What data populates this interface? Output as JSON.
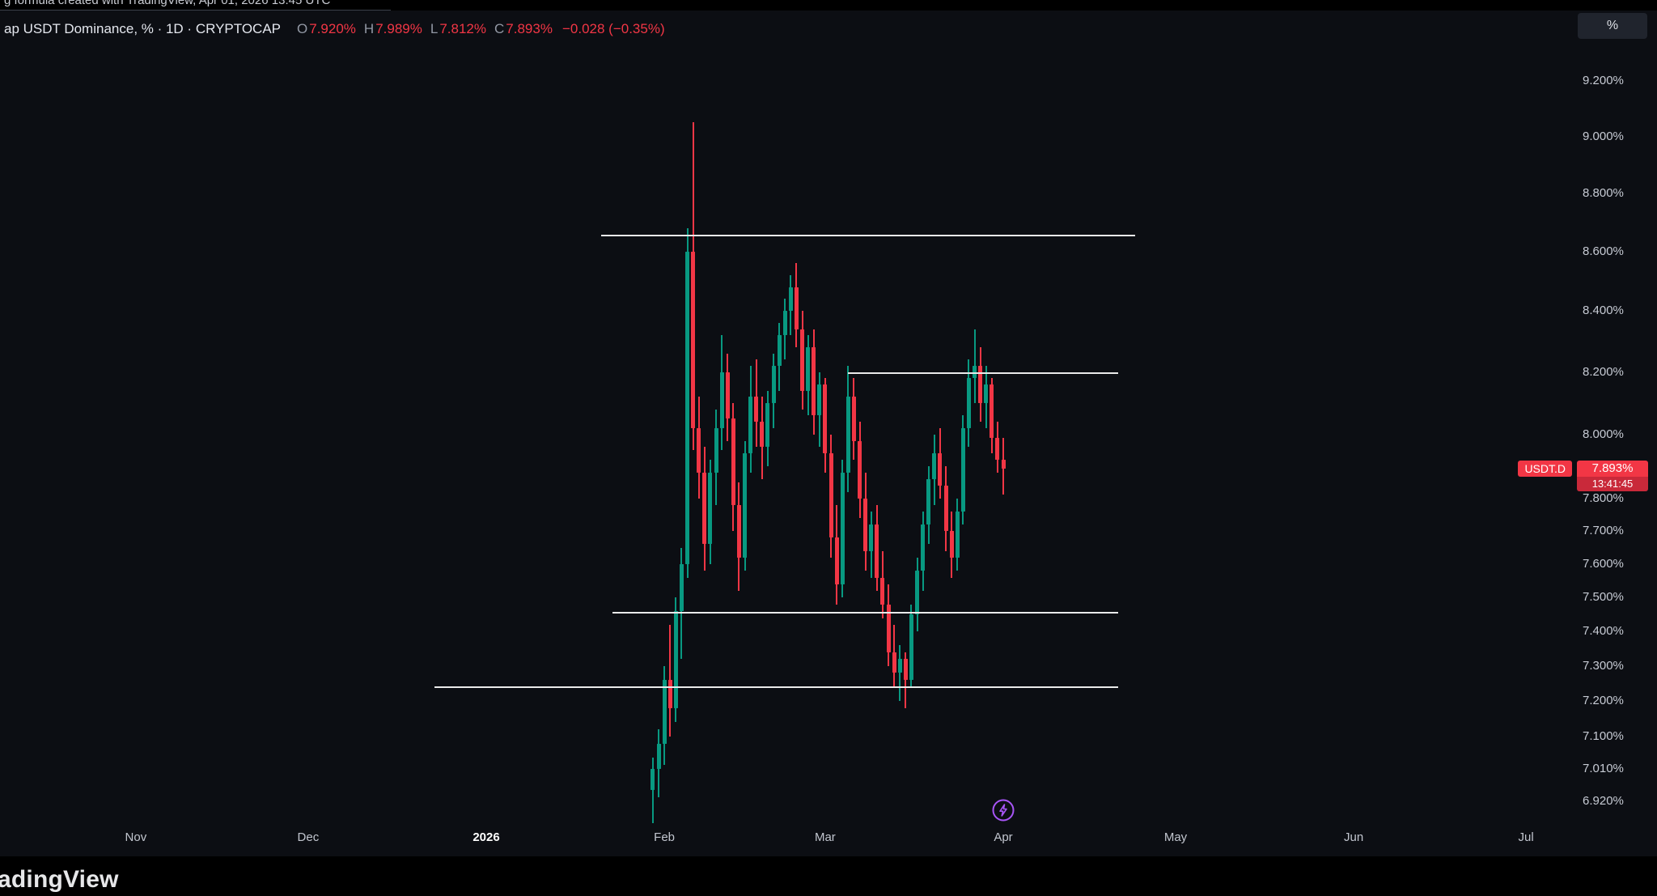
{
  "watermark": {
    "text": "g formula created with TradingView, Apr 01, 2026 13:45 UTC"
  },
  "toolbar": {
    "percent_button": "%"
  },
  "legend": {
    "title": "ap USDT Dominance, % · 1D · CRYPTOCAP",
    "open_label": "O",
    "open_value": "7.920%",
    "high_label": "H",
    "high_value": "7.989%",
    "low_label": "L",
    "low_value": "7.812%",
    "close_label": "C",
    "close_value": "7.893%",
    "change_value": "−0.028 (−0.35%)"
  },
  "price_label": {
    "symbol": "USDT.D",
    "price": "7.893%",
    "value": 7.893,
    "countdown": "13:41:45"
  },
  "logo": {
    "text": "adingView"
  },
  "colors": {
    "background": "#0c0e13",
    "up": "#089981",
    "down": "#f23645",
    "level": "#eaeaea",
    "marker_purple": "#a855f7",
    "axis_text": "#c7cbd4",
    "badge_red": "#f23645"
  },
  "chart_data": {
    "type": "candlestick",
    "symbol": "USDT.D",
    "title": "USDT Dominance, %",
    "interval": "1D",
    "ylim": [
      6.85,
      9.27
    ],
    "y_scale": "log",
    "grid": "off",
    "price_axis": {
      "ticks": [
        {
          "label": "9.200%",
          "value": 9.2
        },
        {
          "label": "9.000%",
          "value": 9.0
        },
        {
          "label": "8.800%",
          "value": 8.8
        },
        {
          "label": "8.600%",
          "value": 8.6
        },
        {
          "label": "8.400%",
          "value": 8.4
        },
        {
          "label": "8.200%",
          "value": 8.2
        },
        {
          "label": "8.000%",
          "value": 8.0
        },
        {
          "label": "7.800%",
          "value": 7.8
        },
        {
          "label": "7.700%",
          "value": 7.7
        },
        {
          "label": "7.600%",
          "value": 7.6
        },
        {
          "label": "7.500%",
          "value": 7.5
        },
        {
          "label": "7.400%",
          "value": 7.4
        },
        {
          "label": "7.300%",
          "value": 7.3
        },
        {
          "label": "7.200%",
          "value": 7.2
        },
        {
          "label": "7.100%",
          "value": 7.1
        },
        {
          "label": "7.010%",
          "value": 7.01
        },
        {
          "label": "6.920%",
          "value": 6.92
        }
      ]
    },
    "time_axis": {
      "labels": [
        {
          "label": "Nov",
          "date": "2025-11-01"
        },
        {
          "label": "Dec",
          "date": "2025-12-01"
        },
        {
          "label": "2026",
          "date": "2026-01-01",
          "bold": true
        },
        {
          "label": "Feb",
          "date": "2026-02-01"
        },
        {
          "label": "Mar",
          "date": "2026-03-01"
        },
        {
          "label": "Apr",
          "date": "2026-04-01"
        },
        {
          "label": "May",
          "date": "2026-05-01"
        },
        {
          "label": "Jun",
          "date": "2026-06-01"
        },
        {
          "label": "Jul",
          "date": "2026-07-01"
        }
      ]
    },
    "levels": [
      {
        "price": 8.655,
        "from": "2026-01-21",
        "to": "2026-04-24"
      },
      {
        "price": 8.195,
        "from": "2026-03-05",
        "to": "2026-04-21"
      },
      {
        "price": 7.455,
        "from": "2026-01-23",
        "to": "2026-04-21"
      },
      {
        "price": 7.24,
        "from": "2025-12-23",
        "to": "2026-04-21"
      }
    ],
    "marker": {
      "icon": "lightning-icon",
      "date": "2026-04-01"
    },
    "candles_format": [
      "date",
      "open",
      "high",
      "low",
      "close"
    ],
    "candles": [
      [
        "2026-01-30",
        6.95,
        7.04,
        6.86,
        7.01
      ],
      [
        "2026-01-31",
        7.01,
        7.12,
        6.93,
        7.08
      ],
      [
        "2026-02-01",
        7.08,
        7.3,
        7.02,
        7.26
      ],
      [
        "2026-02-02",
        7.26,
        7.42,
        7.1,
        7.18
      ],
      [
        "2026-02-03",
        7.18,
        7.5,
        7.14,
        7.46
      ],
      [
        "2026-02-04",
        7.46,
        7.65,
        7.32,
        7.6
      ],
      [
        "2026-02-05",
        7.6,
        8.68,
        7.56,
        8.6
      ],
      [
        "2026-02-06",
        8.6,
        9.05,
        7.95,
        8.02
      ],
      [
        "2026-02-07",
        8.02,
        8.12,
        7.8,
        7.88
      ],
      [
        "2026-02-08",
        7.88,
        7.96,
        7.58,
        7.66
      ],
      [
        "2026-02-09",
        7.66,
        7.92,
        7.6,
        7.88
      ],
      [
        "2026-02-10",
        7.88,
        8.08,
        7.78,
        8.02
      ],
      [
        "2026-02-11",
        8.02,
        8.32,
        7.95,
        8.2
      ],
      [
        "2026-02-12",
        8.2,
        8.26,
        7.98,
        8.05
      ],
      [
        "2026-02-13",
        8.05,
        8.1,
        7.7,
        7.78
      ],
      [
        "2026-02-14",
        7.78,
        7.85,
        7.52,
        7.62
      ],
      [
        "2026-02-15",
        7.62,
        7.98,
        7.58,
        7.94
      ],
      [
        "2026-02-16",
        7.94,
        8.22,
        7.88,
        8.12
      ],
      [
        "2026-02-17",
        8.12,
        8.24,
        7.96,
        8.04
      ],
      [
        "2026-02-18",
        8.04,
        8.12,
        7.86,
        7.96
      ],
      [
        "2026-02-19",
        7.96,
        8.14,
        7.9,
        8.1
      ],
      [
        "2026-02-20",
        8.1,
        8.26,
        8.02,
        8.22
      ],
      [
        "2026-02-21",
        8.22,
        8.36,
        8.14,
        8.32
      ],
      [
        "2026-02-22",
        8.32,
        8.44,
        8.24,
        8.4
      ],
      [
        "2026-02-23",
        8.4,
        8.52,
        8.32,
        8.48
      ],
      [
        "2026-02-24",
        8.48,
        8.56,
        8.28,
        8.34
      ],
      [
        "2026-02-25",
        8.34,
        8.4,
        8.08,
        8.14
      ],
      [
        "2026-02-26",
        8.14,
        8.32,
        8.06,
        8.28
      ],
      [
        "2026-02-27",
        8.28,
        8.34,
        8.0,
        8.06
      ],
      [
        "2026-02-28",
        8.06,
        8.2,
        7.96,
        8.16
      ],
      [
        "2026-03-01",
        8.16,
        8.18,
        7.88,
        7.94
      ],
      [
        "2026-03-02",
        7.94,
        8.0,
        7.62,
        7.68
      ],
      [
        "2026-03-03",
        7.68,
        7.78,
        7.48,
        7.54
      ],
      [
        "2026-03-04",
        7.54,
        7.92,
        7.5,
        7.88
      ],
      [
        "2026-03-05",
        7.88,
        8.22,
        7.82,
        8.12
      ],
      [
        "2026-03-06",
        8.12,
        8.18,
        7.92,
        7.98
      ],
      [
        "2026-03-07",
        7.98,
        8.04,
        7.74,
        7.8
      ],
      [
        "2026-03-08",
        7.8,
        7.88,
        7.58,
        7.64
      ],
      [
        "2026-03-09",
        7.64,
        7.76,
        7.56,
        7.72
      ],
      [
        "2026-03-10",
        7.72,
        7.78,
        7.52,
        7.56
      ],
      [
        "2026-03-11",
        7.56,
        7.64,
        7.44,
        7.48
      ],
      [
        "2026-03-12",
        7.48,
        7.54,
        7.3,
        7.34
      ],
      [
        "2026-03-13",
        7.34,
        7.42,
        7.24,
        7.28
      ],
      [
        "2026-03-14",
        7.28,
        7.36,
        7.2,
        7.32
      ],
      [
        "2026-03-15",
        7.32,
        7.34,
        7.18,
        7.26
      ],
      [
        "2026-03-16",
        7.26,
        7.48,
        7.24,
        7.45
      ],
      [
        "2026-03-17",
        7.45,
        7.62,
        7.4,
        7.58
      ],
      [
        "2026-03-18",
        7.58,
        7.76,
        7.52,
        7.72
      ],
      [
        "2026-03-19",
        7.72,
        7.9,
        7.66,
        7.86
      ],
      [
        "2026-03-20",
        7.86,
        8.0,
        7.78,
        7.94
      ],
      [
        "2026-03-21",
        7.94,
        8.02,
        7.8,
        7.84
      ],
      [
        "2026-03-22",
        7.84,
        7.9,
        7.64,
        7.7
      ],
      [
        "2026-03-23",
        7.7,
        7.76,
        7.56,
        7.62
      ],
      [
        "2026-03-24",
        7.62,
        7.8,
        7.58,
        7.76
      ],
      [
        "2026-03-25",
        7.76,
        8.06,
        7.72,
        8.02
      ],
      [
        "2026-03-26",
        8.02,
        8.24,
        7.96,
        8.18
      ],
      [
        "2026-03-27",
        8.18,
        8.34,
        8.1,
        8.22
      ],
      [
        "2026-03-28",
        8.22,
        8.28,
        8.04,
        8.1
      ],
      [
        "2026-03-29",
        8.1,
        8.22,
        8.02,
        8.16
      ],
      [
        "2026-03-30",
        8.16,
        8.18,
        7.94,
        7.99
      ],
      [
        "2026-03-31",
        7.99,
        8.04,
        7.88,
        7.92
      ],
      [
        "2026-04-01",
        7.92,
        7.989,
        7.812,
        7.893
      ]
    ]
  }
}
